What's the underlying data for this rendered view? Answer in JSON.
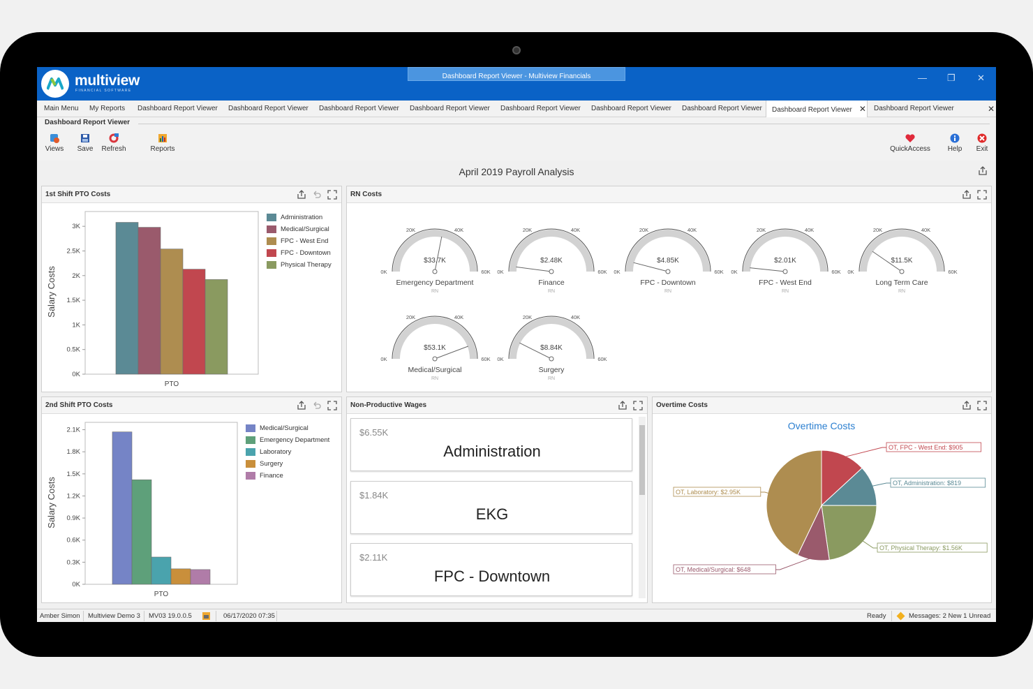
{
  "window": {
    "app_name": "multiview",
    "app_sub": "FINANCIAL SOFTWARE",
    "title": "Dashboard Report Viewer - Multiview Financials",
    "minimize": "—",
    "restore": "❐",
    "close": "✕"
  },
  "tabs": [
    "Main Menu",
    "My Reports",
    "Dashboard Report Viewer",
    "Dashboard Report Viewer",
    "Dashboard Report Viewer",
    "Dashboard Report Viewer",
    "Dashboard Report Viewer",
    "Dashboard Report Viewer",
    "Dashboard Report Viewer",
    "Dashboard Report Viewer",
    "Dashboard Report Viewer"
  ],
  "tab_close": "✕",
  "tabbar_close": "✕",
  "ribbon": {
    "group_label": "Dashboard Report Viewer",
    "buttons": {
      "views": "Views",
      "save": "Save",
      "refresh": "Refresh",
      "reports": "Reports",
      "quickaccess": "QuickAccess",
      "help": "Help",
      "exit": "Exit"
    }
  },
  "report_title": "April 2019 Payroll Analysis",
  "panels": {
    "shift1": "1st Shift PTO Costs",
    "rn": "RN Costs",
    "shift2": "2nd Shift PTO Costs",
    "wages": "Non-Productive Wages",
    "overtime": "Overtime Costs"
  },
  "chart_data": [
    {
      "type": "bar",
      "ylabel": "Salary Costs",
      "categories": [
        "PTO"
      ],
      "ylim": [
        0,
        3300
      ],
      "yticks": [
        "0K",
        "0.5K",
        "1K",
        "1.5K",
        "2K",
        "2.5K",
        "3K"
      ],
      "series": [
        {
          "name": "Administration",
          "values": [
            3080
          ],
          "color": "#5b8a95"
        },
        {
          "name": "Medical/Surgical",
          "values": [
            2980
          ],
          "color": "#9a5a6c"
        },
        {
          "name": "FPC - West End",
          "values": [
            2540
          ],
          "color": "#ae8d50"
        },
        {
          "name": "FPC - Downtown",
          "values": [
            2130
          ],
          "color": "#c1474f"
        },
        {
          "name": "Physical Therapy",
          "values": [
            1920
          ],
          "color": "#8a9a60"
        }
      ]
    },
    {
      "type": "bar",
      "ylabel": "Salary Costs",
      "categories": [
        "PTO"
      ],
      "ylim": [
        0,
        2200
      ],
      "yticks": [
        "0K",
        "0.3K",
        "0.6K",
        "0.9K",
        "1.2K",
        "1.5K",
        "1.8K",
        "2.1K"
      ],
      "series": [
        {
          "name": "Medical/Surgical",
          "values": [
            2070
          ],
          "color": "#7584c6"
        },
        {
          "name": "Emergency Department",
          "values": [
            1420
          ],
          "color": "#5ea07a"
        },
        {
          "name": "Laboratory",
          "values": [
            370
          ],
          "color": "#4aa3ad"
        },
        {
          "name": "Surgery",
          "values": [
            210
          ],
          "color": "#c98f3b"
        },
        {
          "name": "Finance",
          "values": [
            200
          ],
          "color": "#b07ca8"
        }
      ]
    },
    {
      "type": "gauge",
      "range": [
        0,
        60000
      ],
      "tick_labels": [
        "0K",
        "20K",
        "40K",
        "60K"
      ],
      "sub_label": "RN",
      "gauges": [
        {
          "name": "Emergency Department",
          "label": "$33.7K",
          "value": 33700
        },
        {
          "name": "Finance",
          "label": "$2.48K",
          "value": 2480
        },
        {
          "name": "FPC - Downtown",
          "label": "$4.85K",
          "value": 4850
        },
        {
          "name": "FPC - West End",
          "label": "$2.01K",
          "value": 2010
        },
        {
          "name": "Long Term Care",
          "label": "$11.5K",
          "value": 11500
        },
        {
          "name": "Medical/Surgical",
          "label": "$53.1K",
          "value": 53100
        },
        {
          "name": "Surgery",
          "label": "$8.84K",
          "value": 8840
        }
      ]
    },
    {
      "type": "pie",
      "title": "Overtime Costs",
      "slices": [
        {
          "label": "OT, FPC - West End: $905",
          "value": 905,
          "color": "#c1474f"
        },
        {
          "label": "OT, Administration: $819",
          "value": 819,
          "color": "#5b8a95"
        },
        {
          "label": "OT, Physical Therapy: $1.56K",
          "value": 1560,
          "color": "#8a9a60"
        },
        {
          "label": "OT, Medical/Surgical: $648",
          "value": 648,
          "color": "#9a5a6c"
        },
        {
          "label": "OT, Laboratory: $2.95K",
          "value": 2950,
          "color": "#ae8d50"
        }
      ]
    }
  ],
  "wages": [
    {
      "value": "$6.55K",
      "name": "Administration"
    },
    {
      "value": "$1.84K",
      "name": "EKG"
    },
    {
      "value": "$2.11K",
      "name": "FPC - Downtown"
    }
  ],
  "status": {
    "user": "Amber Simon",
    "company": "Multiview Demo 3",
    "version": "MV03 19.0.0.5",
    "datetime": "06/17/2020 07:35",
    "state": "Ready",
    "messages": "Messages: 2 New 1 Unread"
  }
}
